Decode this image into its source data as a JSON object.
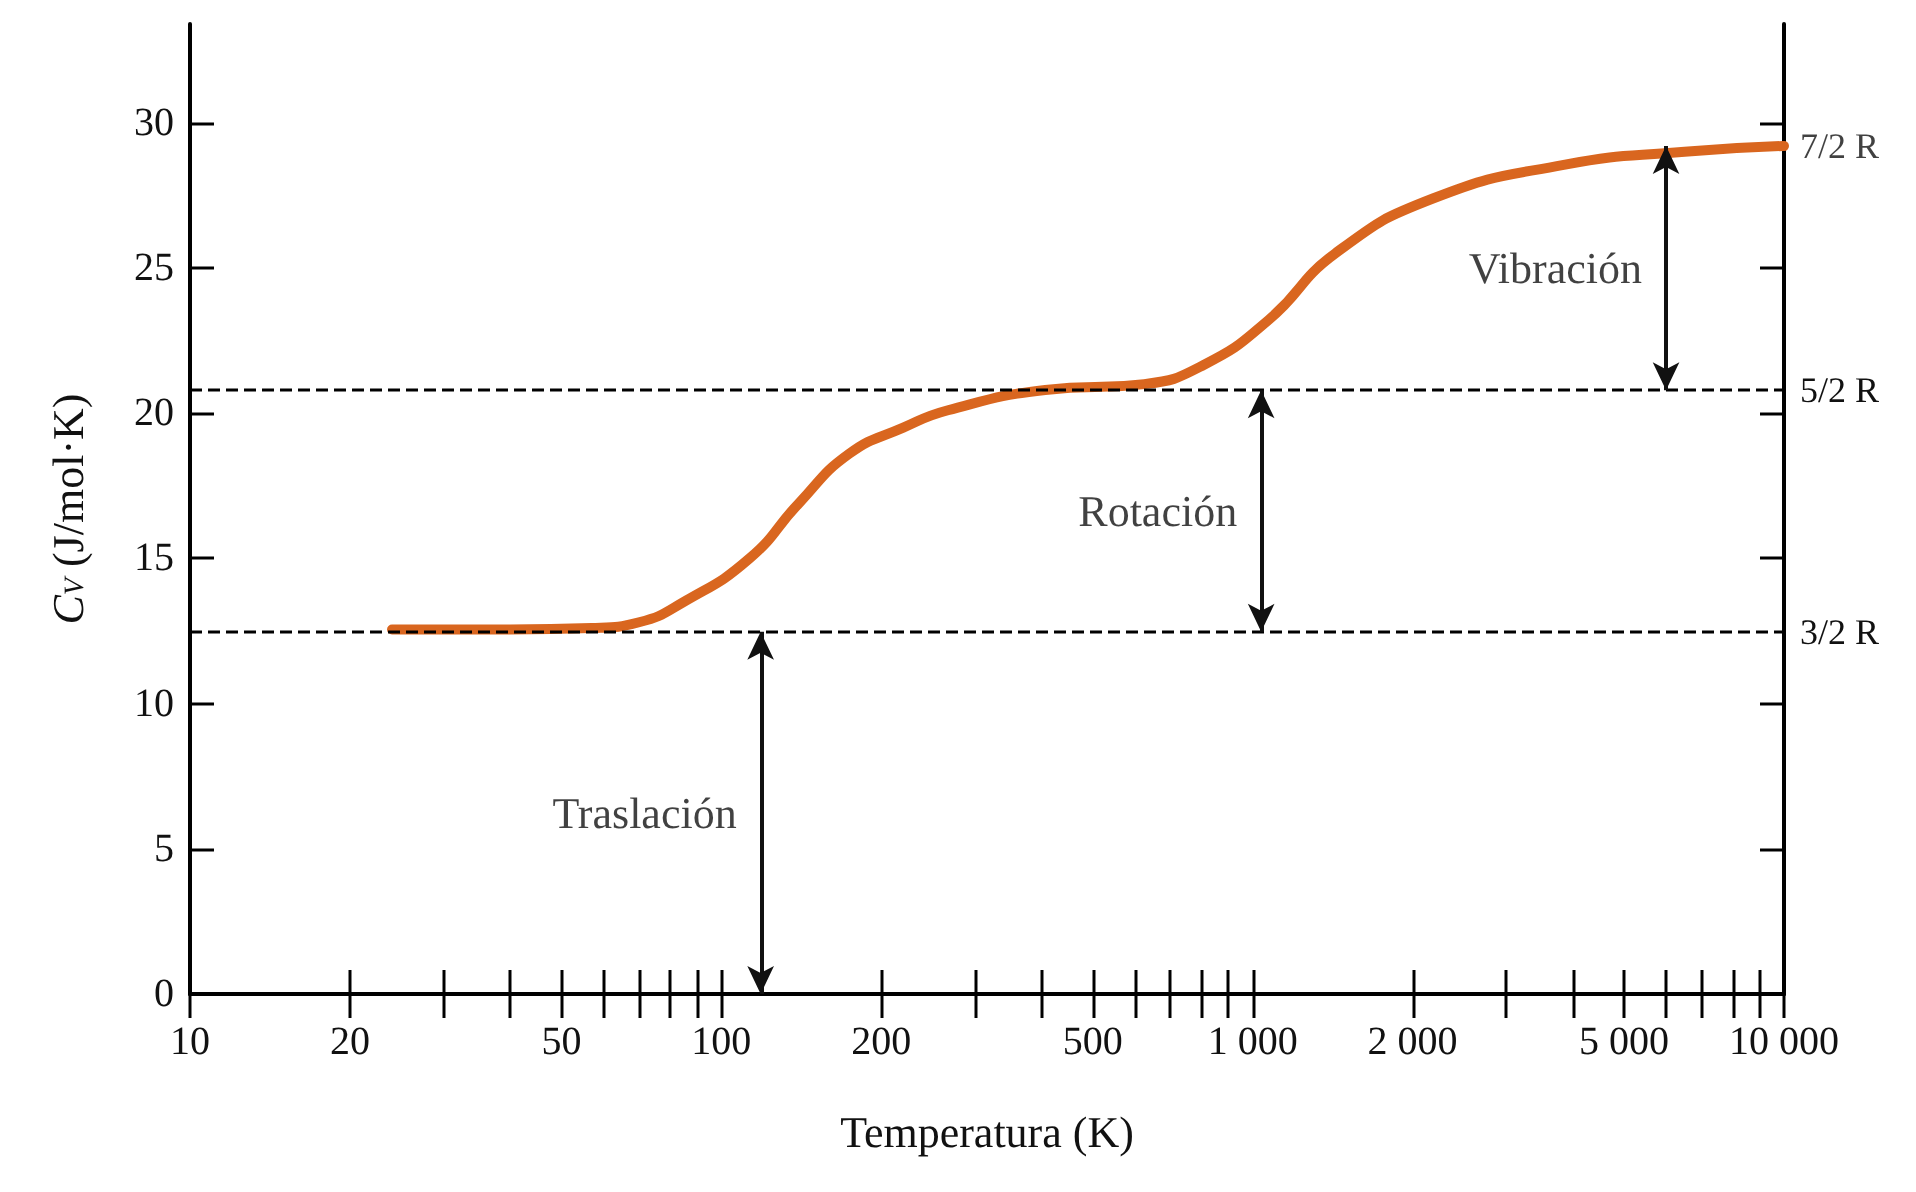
{
  "chart_data": {
    "type": "line",
    "xlabel": "Temperatura (K)",
    "ylabel": "C$_{V}$ (J/mol·K)",
    "log": "x",
    "x": [
      24,
      40,
      57,
      70,
      85,
      113,
      140,
      174,
      220,
      267,
      407,
      625,
      807,
      1070,
      1430,
      2190,
      3850,
      6500,
      10000
    ],
    "series": [
      {
        "color": "#d9661f",
        "values": [
          12.55,
          12.55,
          12.6,
          12.8,
          13.5,
          15.0,
          16.9,
          18.6,
          19.5,
          20.1,
          20.8,
          21.0,
          21.65,
          23.2,
          25.5,
          27.4,
          28.55,
          29.0,
          29.2
        ]
      }
    ],
    "xlim": [
      10,
      10000
    ],
    "xticks": [
      10,
      20,
      {
        "value": 30,
        "label": null
      },
      {
        "value": 40,
        "label": null
      },
      50,
      {
        "value": 60,
        "label": null
      },
      {
        "value": 70,
        "label": null
      },
      {
        "value": 80,
        "label": null
      },
      {
        "value": 90,
        "label": null
      },
      100,
      200,
      {
        "value": 300,
        "label": null
      },
      {
        "value": 400,
        "label": null
      },
      500,
      {
        "value": 600,
        "label": null
      },
      {
        "value": 700,
        "label": null
      },
      {
        "value": 800,
        "label": null
      },
      {
        "value": 900,
        "label": null
      },
      {
        "value": 1000,
        "label": "1 000"
      },
      {
        "value": 2000,
        "label": "2 000"
      },
      {
        "value": 3000,
        "label": null
      },
      {
        "value": 4000,
        "label": null
      },
      {
        "value": 5000,
        "label": "5 000"
      },
      {
        "value": 6000,
        "label": null
      },
      {
        "value": 7000,
        "label": null
      },
      {
        "value": 8000,
        "label": null
      },
      {
        "value": 9000,
        "label": null
      },
      {
        "value": 10000,
        "label": "10 000"
      }
    ],
    "ylim": [
      0,
      33.4
    ],
    "yticks": [
      0,
      5,
      10,
      15,
      20,
      25,
      30
    ],
    "ref_lines": [
      {
        "axis": "y",
        "value": 12.47,
        "label": "3/2 R",
        "color": "#000000",
        "line_style": "dashed"
      },
      {
        "axis": "y",
        "value": 20.79,
        "label": "5/2 R",
        "color": "#000000",
        "line_style": "dashed"
      }
    ],
    "annotations": [
      "Traslación",
      "Rotación",
      "Vibración",
      "7/2 R"
    ],
    "grid": false,
    "marker": "none",
    "line_style": "solid"
  }
}
